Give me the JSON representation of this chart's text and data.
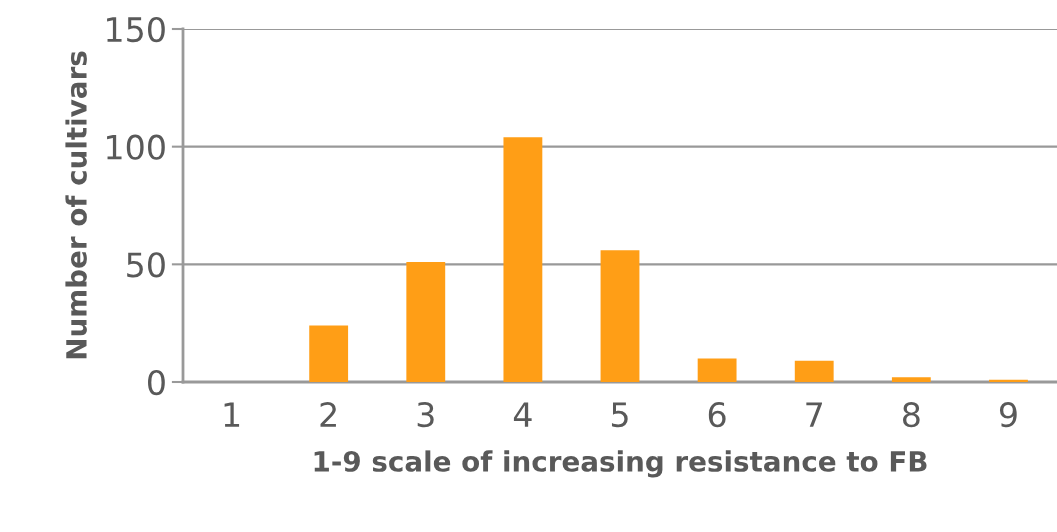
{
  "chart_data": {
    "type": "bar",
    "xlabel": "1-9 scale of increasing resistance to FB",
    "ylabel": "Number of cultivars",
    "categories": [
      "1",
      "2",
      "3",
      "4",
      "5",
      "6",
      "7",
      "8",
      "9"
    ],
    "values": [
      0,
      24,
      51,
      104,
      56,
      10,
      9,
      2,
      1
    ],
    "color": "#ff9e16",
    "ylim": [
      0,
      150
    ],
    "yticks": [
      0,
      50,
      100,
      150
    ],
    "grid": "y",
    "legend": false
  }
}
